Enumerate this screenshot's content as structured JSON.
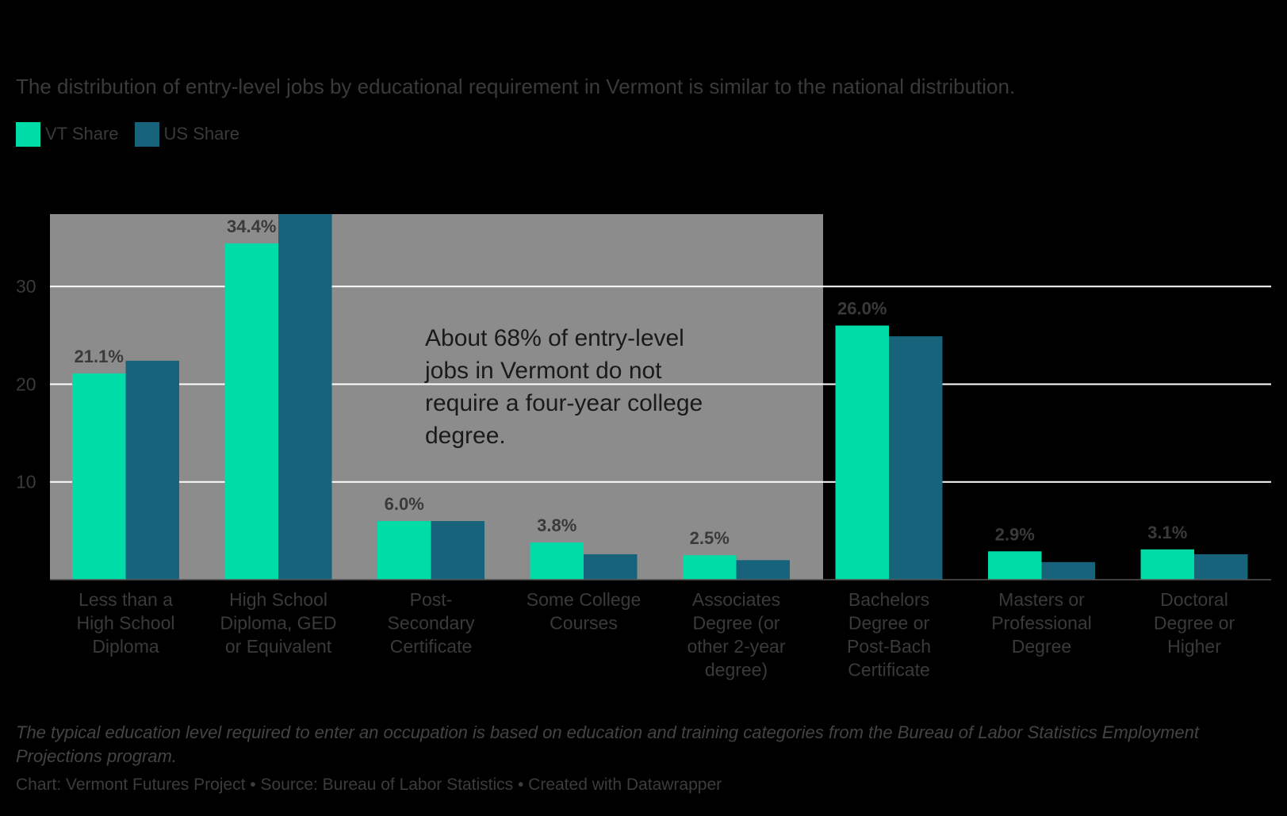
{
  "chart_data": {
    "type": "bar",
    "title": "The distribution of entry-level jobs by educational requirement in Vermont is similar to the national distribution.",
    "categories": [
      [
        "Less than a",
        "High School",
        "Diploma"
      ],
      [
        "High School",
        "Diploma, GED",
        "or Equivalent"
      ],
      [
        "Post-",
        "Secondary",
        "Certificate"
      ],
      [
        "Some College",
        "Courses"
      ],
      [
        "Associates",
        "Degree (or",
        "other 2-year",
        "degree)"
      ],
      [
        "Bachelors",
        "Degree or",
        "Post-Bach",
        "Certificate"
      ],
      [
        "Masters or",
        "Professional",
        "Degree"
      ],
      [
        "Doctoral",
        "Degree or",
        "Higher"
      ]
    ],
    "series": [
      {
        "name": "VT Share",
        "color": "#00dca8",
        "values": [
          21.1,
          34.4,
          6.0,
          3.8,
          2.5,
          26.0,
          2.9,
          3.1
        ]
      },
      {
        "name": "US Share",
        "color": "#17637c",
        "values": [
          22.4,
          37.4,
          6.0,
          2.6,
          2.0,
          24.9,
          1.8,
          2.6
        ]
      }
    ],
    "data_labels": [
      "21.1%",
      "34.4%",
      "6.0%",
      "3.8%",
      "2.5%",
      "26.0%",
      "2.9%",
      "3.1%"
    ],
    "yticks": [
      "10",
      "20",
      "30"
    ],
    "ylim": [
      0,
      37.4
    ],
    "xlabel": "",
    "ylabel": "",
    "grid": true,
    "highlight_range": {
      "from_category": 0,
      "to_category": 4,
      "color": "#8c8c8c"
    },
    "annotation": [
      "About 68% of entry-level",
      "jobs in Vermont do not",
      "require a four-year college",
      "degree."
    ],
    "legend_position": "top-left"
  },
  "notes": "The typical education level required to enter an occupation is based on education and training categories from the Bureau of Labor Statistics Employment Projections program.",
  "credits": "Chart: Vermont Futures Project • Source: Bureau of Labor Statistics • Created with Datawrapper"
}
